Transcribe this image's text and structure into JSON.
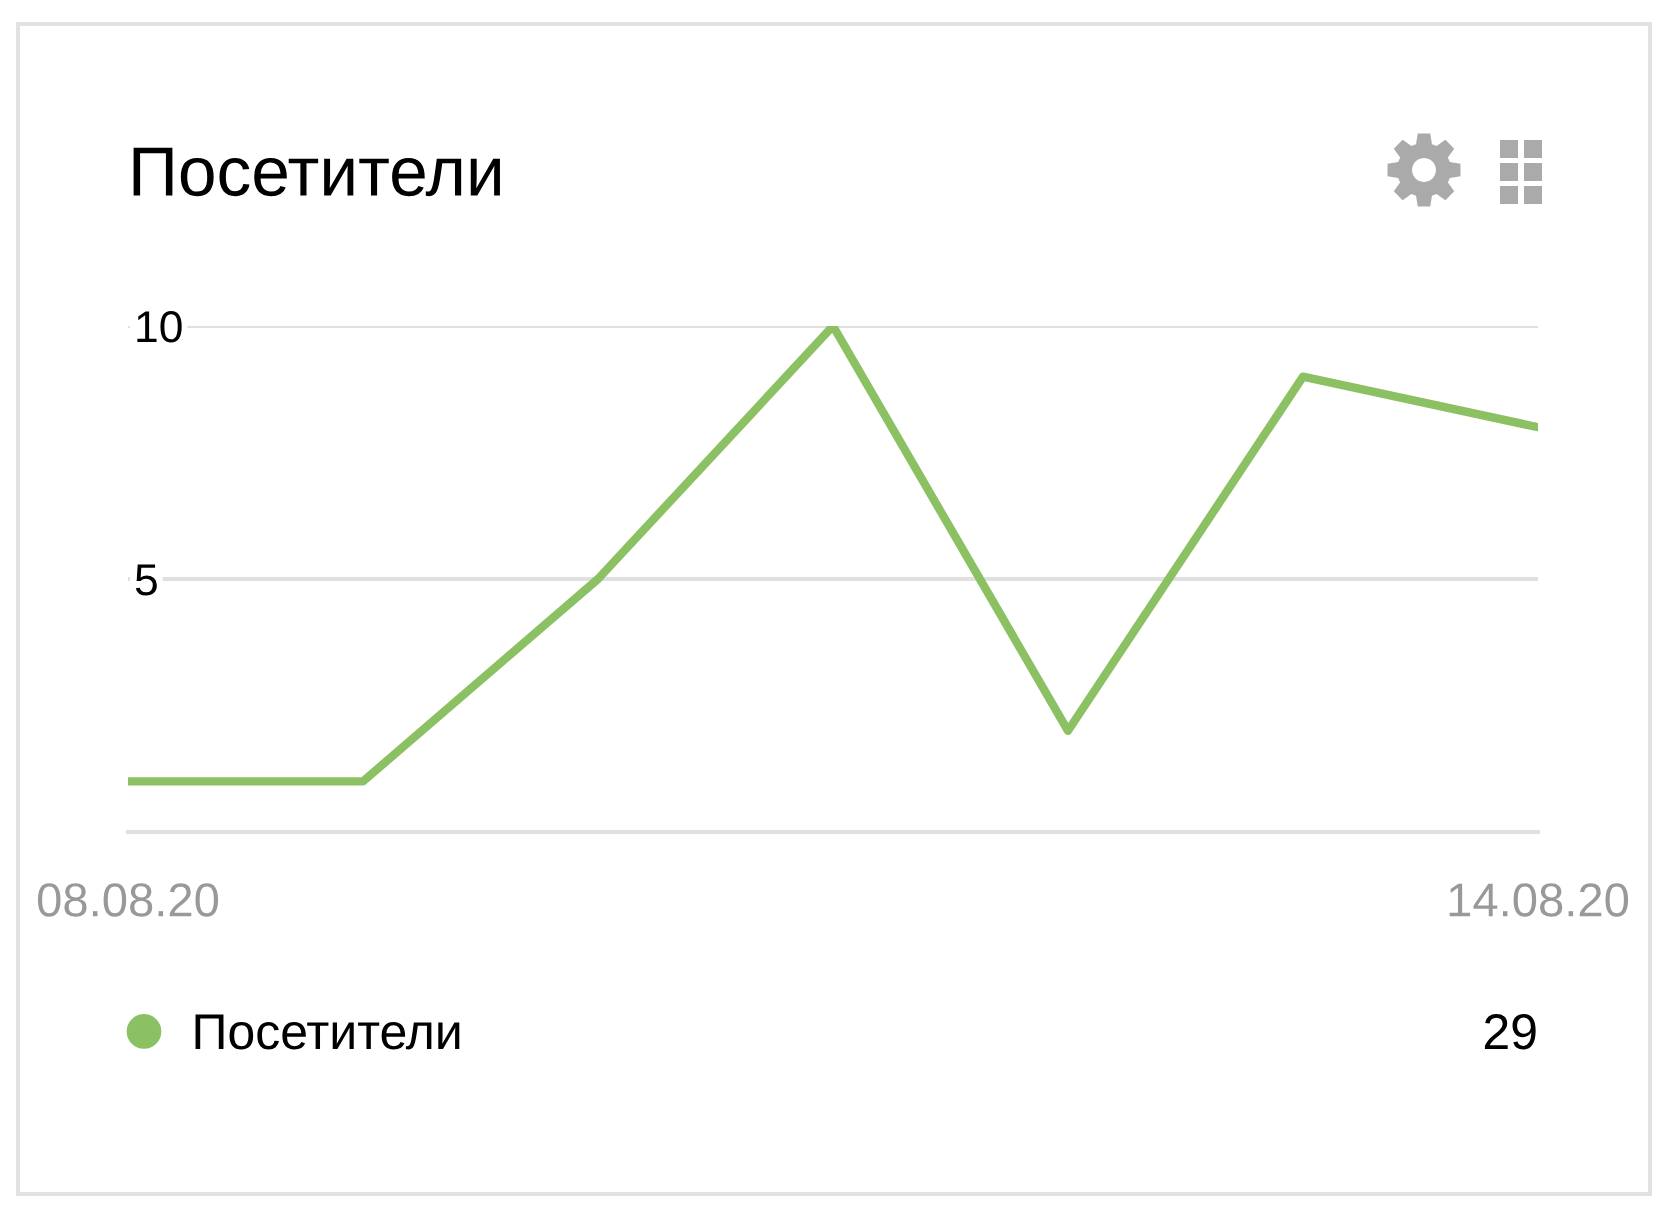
{
  "chart_data": {
    "type": "line",
    "title": "Посетители",
    "categories": [
      "08.08.20",
      null,
      null,
      null,
      null,
      null,
      "14.08.20"
    ],
    "series": [
      {
        "name": "Посетители",
        "color": "#8cc163",
        "values": [
          1,
          1,
          5,
          10,
          2,
          9,
          8
        ]
      }
    ],
    "ylim": [
      0,
      10
    ],
    "yticks": [
      {
        "value": 0,
        "label": null
      },
      5,
      10
    ],
    "grid": "y",
    "legend": "bottom",
    "line_style": "solid",
    "annotations": [
      "29"
    ]
  }
}
